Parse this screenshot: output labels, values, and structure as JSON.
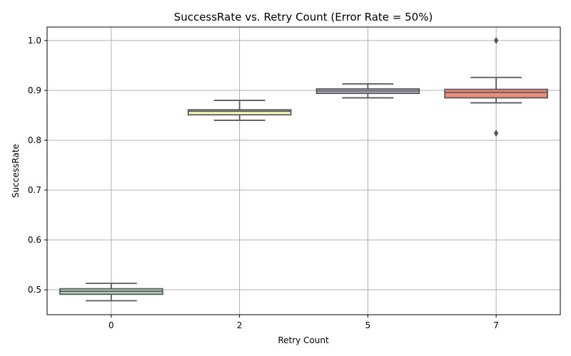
{
  "chart_data": {
    "type": "box",
    "title": "SuccessRate vs. Retry Count (Error Rate = 50%)",
    "xlabel": "Retry Count",
    "ylabel": "SuccessRate",
    "categories": [
      "0",
      "2",
      "5",
      "7"
    ],
    "ylim": [
      0.45,
      1.027
    ],
    "yticks": [
      0.5,
      0.6,
      0.7,
      0.8,
      0.9,
      1.0
    ],
    "ytick_labels": [
      "0.5",
      "0.6",
      "0.7",
      "0.8",
      "0.9",
      "1.0"
    ],
    "grid": true,
    "boxes": [
      {
        "category": "0",
        "whisker_low": 0.478,
        "q1": 0.491,
        "median": 0.497,
        "q3": 0.502,
        "whisker_high": 0.513,
        "outliers": [],
        "color": "#b3d4c3"
      },
      {
        "category": "2",
        "whisker_low": 0.84,
        "q1": 0.851,
        "median": 0.858,
        "q3": 0.861,
        "whisker_high": 0.88,
        "outliers": [],
        "color": "#fdfcbe"
      },
      {
        "category": "5",
        "whisker_low": 0.885,
        "q1": 0.894,
        "median": 0.899,
        "q3": 0.903,
        "whisker_high": 0.913,
        "outliers": [],
        "color": "#bcb8d5"
      },
      {
        "category": "7",
        "whisker_low": 0.875,
        "q1": 0.885,
        "median": 0.896,
        "q3": 0.902,
        "whisker_high": 0.926,
        "outliers": [
          1.0,
          0.814
        ],
        "color": "#f08a7d"
      }
    ]
  }
}
